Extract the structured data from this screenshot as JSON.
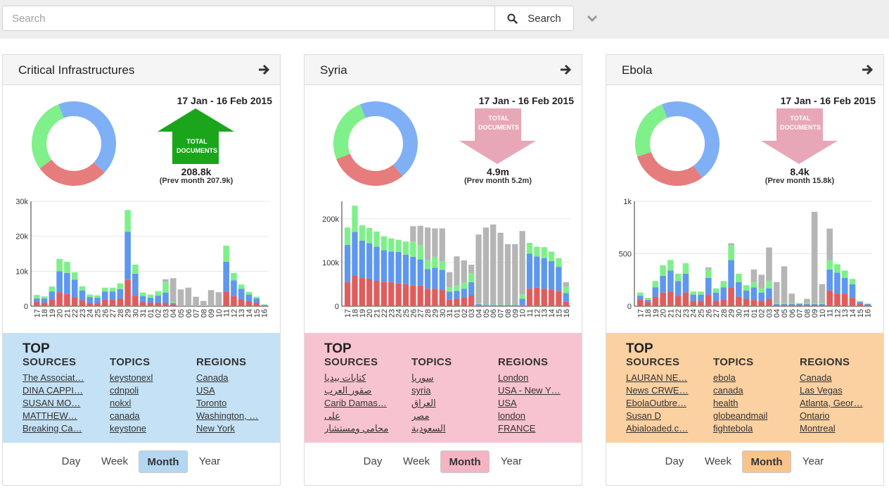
{
  "search": {
    "placeholder": "Search",
    "button_label": "Search"
  },
  "cards": [
    {
      "title": "Critical Infrastructures",
      "date_range": "17 Jan - 16 Feb 2015",
      "arrow_direction": "up",
      "arrow_label_line1": "TOTAL",
      "arrow_label_line2": "DOCUMENTS",
      "total": "208.8k",
      "prev_month": "(Prev month 207.9k)",
      "accent_color": "#c5e1f5",
      "active_button_color": "#b3d7f1",
      "donut_segments": [
        {
          "color": "#7fb0f6",
          "value": 0.43
        },
        {
          "color": "#e67c7c",
          "value": 0.28
        },
        {
          "color": "#80f08a",
          "value": 0.29
        }
      ],
      "chart_data": {
        "type": "bar",
        "stacked": true,
        "y_ticks": [
          "0",
          "10k",
          "20k",
          "30k"
        ],
        "ylim": [
          0,
          30000
        ],
        "categories": [
          "17",
          "18",
          "19",
          "20",
          "21",
          "22",
          "23",
          "24",
          "25",
          "26",
          "27",
          "28",
          "29",
          "30",
          "31",
          "01",
          "02",
          "03",
          "04",
          "05",
          "06",
          "07",
          "08",
          "09",
          "10",
          "11",
          "12",
          "13",
          "14",
          "15",
          "16"
        ],
        "series": [
          {
            "color": "#e05d5d",
            "values": [
              1200,
              1000,
              1800,
              4000,
              3500,
              2600,
              1700,
              900,
              900,
              1800,
              1800,
              2200,
              7500,
              3000,
              1200,
              1000,
              1000,
              1000,
              500,
              0,
              0,
              0,
              0,
              0,
              0,
              4200,
              2900,
              2000,
              1400,
              1000,
              100
            ]
          },
          {
            "color": "#5e97ee",
            "values": [
              1000,
              1200,
              2400,
              6000,
              6000,
              5000,
              2800,
              1700,
              1500,
              2400,
              2400,
              2700,
              13800,
              6300,
              1700,
              1400,
              2000,
              2900,
              400,
              0,
              0,
              0,
              0,
              0,
              0,
              8500,
              4500,
              3000,
              1900,
              1200,
              200
            ]
          },
          {
            "color": "#7ef08a",
            "values": [
              1000,
              600,
              1400,
              3500,
              3200,
              2100,
              1200,
              700,
              700,
              1100,
              1100,
              1600,
              6200,
              2600,
              1000,
              900,
              1300,
              3000,
              300,
              0,
              0,
              0,
              0,
              0,
              0,
              4600,
              2100,
              1200,
              800,
              500,
              200
            ]
          },
          {
            "color": "#b5b5b5",
            "values": [
              0,
              0,
              0,
              0,
              0,
              0,
              0,
              0,
              0,
              0,
              0,
              0,
              0,
              0,
              0,
              0,
              0,
              800,
              6800,
              4800,
              5300,
              2700,
              1500,
              4600,
              4000,
              0,
              0,
              0,
              0,
              0,
              0
            ]
          }
        ]
      },
      "top_title": "TOP",
      "columns": [
        {
          "heading": "SOURCES",
          "items": [
            "The Associat…",
            "DINA CAPPI…",
            "SUSAN MO…",
            "MATTHEW…",
            "Breaking Ca…"
          ]
        },
        {
          "heading": "TOPICS",
          "items": [
            "keystonexl",
            "cdnpoli",
            "nokxl",
            "canada",
            "keystone"
          ]
        },
        {
          "heading": "REGIONS",
          "items": [
            "Canada",
            "USA",
            "Toronto",
            "Washington, …",
            "New York"
          ]
        }
      ],
      "periods": [
        "Day",
        "Week",
        "Month",
        "Year"
      ],
      "active_period": "Month"
    },
    {
      "title": "Syria",
      "date_range": "17 Jan - 16 Feb 2015",
      "arrow_direction": "down",
      "arrow_label_line1": "TOTAL",
      "arrow_label_line2": "DOCUMENTS",
      "total": "4.9m",
      "prev_month": "(Prev month 5.2m)",
      "accent_color": "#f8c3d0",
      "active_button_color": "#f5b4c4",
      "donut_segments": [
        {
          "color": "#7fb0f6",
          "value": 0.45
        },
        {
          "color": "#e67c7c",
          "value": 0.3
        },
        {
          "color": "#80f08a",
          "value": 0.25
        }
      ],
      "chart_data": {
        "type": "bar",
        "stacked": true,
        "y_ticks": [
          "0",
          "100k",
          "200k"
        ],
        "ylim": [
          0,
          240000
        ],
        "categories": [
          "17",
          "18",
          "19",
          "20",
          "21",
          "22",
          "23",
          "24",
          "25",
          "26",
          "27",
          "28",
          "29",
          "30",
          "31",
          "01",
          "02",
          "03",
          "04",
          "05",
          "06",
          "07",
          "08",
          "09",
          "10",
          "11",
          "12",
          "13",
          "14",
          "15",
          "16"
        ],
        "series": [
          {
            "color": "#e05d5d",
            "values": [
              55000,
              70000,
              65000,
              62000,
              58000,
              56000,
              55000,
              52000,
              50000,
              48000,
              47000,
              40000,
              40000,
              38000,
              15000,
              17000,
              20000,
              25000,
              2000,
              1000,
              1000,
              1000,
              1000,
              1000,
              2000,
              40000,
              42000,
              40000,
              38000,
              35000,
              10000
            ]
          },
          {
            "color": "#5e97ee",
            "values": [
              85000,
              100000,
              85000,
              82000,
              78000,
              72000,
              70000,
              72000,
              68000,
              65000,
              60000,
              45000,
              48000,
              45000,
              18000,
              18000,
              20000,
              30000,
              3000,
              2000,
              2000,
              2000,
              2000,
              2000,
              15000,
              80000,
              72000,
              70000,
              65000,
              55000,
              20000
            ]
          },
          {
            "color": "#7ef08a",
            "values": [
              40000,
              60000,
              35000,
              35000,
              35000,
              32000,
              30000,
              28000,
              30000,
              35000,
              32000,
              20000,
              25000,
              20000,
              10000,
              12000,
              15000,
              20000,
              1000,
              1000,
              1000,
              1000,
              1000,
              1000,
              10000,
              25000,
              22000,
              25000,
              22000,
              20000,
              15000
            ]
          },
          {
            "color": "#b5b5b5",
            "values": [
              0,
              0,
              0,
              0,
              0,
              0,
              0,
              0,
              0,
              35000,
              45000,
              75000,
              65000,
              75000,
              35000,
              67000,
              50000,
              20000,
              158000,
              176000,
              183000,
              164000,
              138000,
              138000,
              145000,
              0,
              0,
              0,
              0,
              0,
              10000
            ]
          }
        ]
      },
      "top_title": "TOP",
      "columns": [
        {
          "heading": "SOURCES",
          "items": [
            "كتابات بيديا",
            "صقور العرب",
            "Carib Damas…",
            "على",
            "محامي ومستشار"
          ]
        },
        {
          "heading": "TOPICS",
          "items": [
            "سوريا",
            "syria",
            "العراق",
            "مصر",
            "السعودية"
          ]
        },
        {
          "heading": "REGIONS",
          "items": [
            "London",
            "USA - New Y…",
            "USA",
            "london",
            "FRANCE"
          ]
        }
      ],
      "periods": [
        "Day",
        "Week",
        "Month",
        "Year"
      ],
      "active_period": "Month"
    },
    {
      "title": "Ebola",
      "date_range": "17 Jan - 16 Feb 2015",
      "arrow_direction": "down",
      "arrow_label_line1": "TOTAL",
      "arrow_label_line2": "DOCUMENTS",
      "total": "8.4k",
      "prev_month": "(Prev month 15.8k)",
      "accent_color": "#fbd1a2",
      "active_button_color": "#f9c38c",
      "donut_segments": [
        {
          "color": "#7fb0f6",
          "value": 0.46
        },
        {
          "color": "#e67c7c",
          "value": 0.3
        },
        {
          "color": "#80f08a",
          "value": 0.24
        }
      ],
      "chart_data": {
        "type": "bar",
        "stacked": true,
        "y_ticks": [
          "0",
          "500",
          "1k"
        ],
        "ylim": [
          0,
          1000
        ],
        "categories": [
          "17",
          "18",
          "19",
          "20",
          "21",
          "22",
          "23",
          "24",
          "25",
          "26",
          "27",
          "28",
          "29",
          "30",
          "31",
          "01",
          "02",
          "03",
          "04",
          "05",
          "06",
          "07",
          "08",
          "09",
          "10",
          "11",
          "12",
          "13",
          "14",
          "15",
          "16"
        ],
        "series": [
          {
            "color": "#e05d5d",
            "values": [
              60,
              40,
              90,
              130,
              140,
              100,
              130,
              50,
              50,
              110,
              50,
              60,
              180,
              90,
              70,
              60,
              50,
              70,
              10,
              10,
              10,
              10,
              10,
              10,
              10,
              150,
              120,
              120,
              80,
              20,
              10
            ]
          },
          {
            "color": "#5e97ee",
            "values": [
              40,
              20,
              90,
              160,
              200,
              140,
              180,
              60,
              60,
              160,
              80,
              120,
              260,
              140,
              80,
              120,
              80,
              100,
              10,
              10,
              10,
              10,
              10,
              10,
              10,
              200,
              200,
              150,
              130,
              20,
              10
            ]
          },
          {
            "color": "#7ef08a",
            "values": [
              30,
              20,
              60,
              100,
              100,
              70,
              100,
              30,
              30,
              80,
              40,
              60,
              140,
              80,
              50,
              50,
              40,
              70,
              10,
              10,
              10,
              10,
              10,
              10,
              10,
              90,
              80,
              70,
              50,
              10,
              5
            ]
          },
          {
            "color": "#b5b5b5",
            "values": [
              0,
              0,
              0,
              0,
              0,
              0,
              0,
              0,
              0,
              20,
              0,
              0,
              20,
              0,
              0,
              120,
              130,
              320,
              200,
              350,
              90,
              0,
              40,
              870,
              180,
              300,
              0,
              0,
              0,
              0,
              0
            ]
          }
        ]
      },
      "top_title": "TOP",
      "columns": [
        {
          "heading": "SOURCES",
          "items": [
            "LAURAN NE…",
            "News CRWE…",
            "EbolaOutbre…",
            "Susan D",
            "Abialoaded.c…"
          ]
        },
        {
          "heading": "TOPICS",
          "items": [
            "ebola",
            "canada",
            "health",
            "globeandmail",
            "fightebola"
          ]
        },
        {
          "heading": "REGIONS",
          "items": [
            "Canada",
            "Las Vegas",
            "Atlanta, Geor…",
            "Ontario",
            "Montreal"
          ]
        }
      ],
      "periods": [
        "Day",
        "Week",
        "Month",
        "Year"
      ],
      "active_period": "Month"
    }
  ]
}
